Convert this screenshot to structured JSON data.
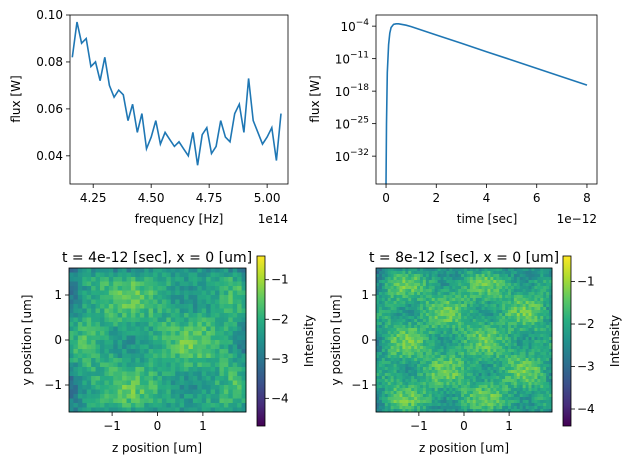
{
  "chart_data": [
    {
      "type": "line",
      "xlabel": "frequency [Hz]",
      "ylabel": "flux [W]",
      "x_offset_label": "1e14",
      "xlim": [
        4.15,
        5.09
      ],
      "ylim": [
        0.028,
        0.1
      ],
      "x_ticks": [
        4.25,
        4.5,
        4.75,
        5.0
      ],
      "x_tick_labels": [
        "4.25",
        "4.50",
        "4.75",
        "5.00"
      ],
      "y_ticks": [
        0.04,
        0.06,
        0.08,
        0.1
      ],
      "y_tick_labels": [
        "0.04",
        "0.06",
        "0.08",
        "0.10"
      ],
      "color": "#1f77b4",
      "series": [
        {
          "x": [
            4.16,
            4.18,
            4.2,
            4.22,
            4.24,
            4.26,
            4.28,
            4.3,
            4.32,
            4.34,
            4.36,
            4.38,
            4.4,
            4.42,
            4.44,
            4.46,
            4.48,
            4.5,
            4.52,
            4.54,
            4.56,
            4.58,
            4.6,
            4.62,
            4.64,
            4.66,
            4.68,
            4.7,
            4.72,
            4.74,
            4.76,
            4.78,
            4.8,
            4.82,
            4.84,
            4.86,
            4.88,
            4.9,
            4.92,
            4.94,
            4.96,
            4.98,
            5.0,
            5.02,
            5.04,
            5.06
          ],
          "y": [
            0.082,
            0.097,
            0.088,
            0.09,
            0.078,
            0.08,
            0.072,
            0.082,
            0.07,
            0.065,
            0.068,
            0.066,
            0.055,
            0.062,
            0.05,
            0.058,
            0.043,
            0.048,
            0.055,
            0.045,
            0.05,
            0.047,
            0.044,
            0.046,
            0.043,
            0.04,
            0.05,
            0.036,
            0.049,
            0.052,
            0.041,
            0.044,
            0.055,
            0.048,
            0.046,
            0.058,
            0.062,
            0.05,
            0.073,
            0.055,
            0.05,
            0.045,
            0.048,
            0.052,
            0.038,
            0.058
          ]
        }
      ]
    },
    {
      "type": "line",
      "xlabel": "time [sec]",
      "ylabel": "flux [W]",
      "x_offset_label": "1e−12",
      "yscale": "log",
      "xlim": [
        -0.4,
        8.4
      ],
      "ylim_log10": [
        -38,
        -1.6
      ],
      "x_ticks": [
        0,
        2,
        4,
        6,
        8
      ],
      "x_tick_labels": [
        "0",
        "2",
        "4",
        "6",
        "8"
      ],
      "y_ticks_log10": [
        -4,
        -11,
        -18,
        -25,
        -32
      ],
      "y_tick_bases": [
        "10",
        "10",
        "10",
        "10",
        "10"
      ],
      "y_tick_exponents": [
        "−4",
        "−11",
        "−18",
        "−25",
        "−32"
      ],
      "color": "#1f77b4",
      "series": [
        {
          "x": [
            0.0,
            0.02,
            0.05,
            0.1,
            0.15,
            0.2,
            0.3,
            0.4,
            0.5,
            0.8,
            1.0,
            2.0,
            3.0,
            4.0,
            5.0,
            6.0,
            7.0,
            8.0
          ],
          "y_log10": [
            -40,
            -25,
            -14,
            -8,
            -5.5,
            -4.3,
            -3.6,
            -3.5,
            -3.5,
            -3.8,
            -4.1,
            -5.9,
            -7.7,
            -9.5,
            -11.3,
            -13.1,
            -14.9,
            -16.7
          ]
        }
      ]
    },
    {
      "type": "heatmap",
      "title": "t = 4e-12 [sec], x = 0 [um]",
      "xlabel": "z position [um]",
      "ylabel": "y position [um]",
      "colorbar_label": "Intensity",
      "colormap": "viridis",
      "xlim": [
        -1.95,
        1.95
      ],
      "ylim": [
        -1.6,
        1.6
      ],
      "x_ticks": [
        -1,
        0,
        1
      ],
      "x_tick_labels": [
        "−1",
        "0",
        "1"
      ],
      "y_ticks": [
        -1,
        0,
        1
      ],
      "y_tick_labels": [
        "−1",
        "0",
        "1"
      ],
      "clim": [
        -4.7,
        -0.4
      ],
      "cbar_ticks": [
        -1,
        -2,
        -3,
        -4
      ],
      "cbar_tick_labels": [
        "−1",
        "−2",
        "−3",
        "−4"
      ],
      "typical_value": -2.0
    },
    {
      "type": "heatmap",
      "title": "t = 8e-12 [sec], x = 0 [um]",
      "xlabel": "z position [um]",
      "ylabel": "y position [um]",
      "colorbar_label": "Intensity",
      "colormap": "viridis",
      "xlim": [
        -1.95,
        1.95
      ],
      "ylim": [
        -1.6,
        1.6
      ],
      "x_ticks": [
        -1,
        0,
        1
      ],
      "x_tick_labels": [
        "−1",
        "0",
        "1"
      ],
      "y_ticks": [
        -1,
        0,
        1
      ],
      "y_tick_labels": [
        "−1",
        "0",
        "1"
      ],
      "clim": [
        -4.4,
        -0.4
      ],
      "cbar_ticks": [
        -1,
        -2,
        -3,
        -4
      ],
      "cbar_tick_labels": [
        "−1",
        "−2",
        "−3",
        "−4"
      ],
      "typical_value": -1.8
    }
  ]
}
